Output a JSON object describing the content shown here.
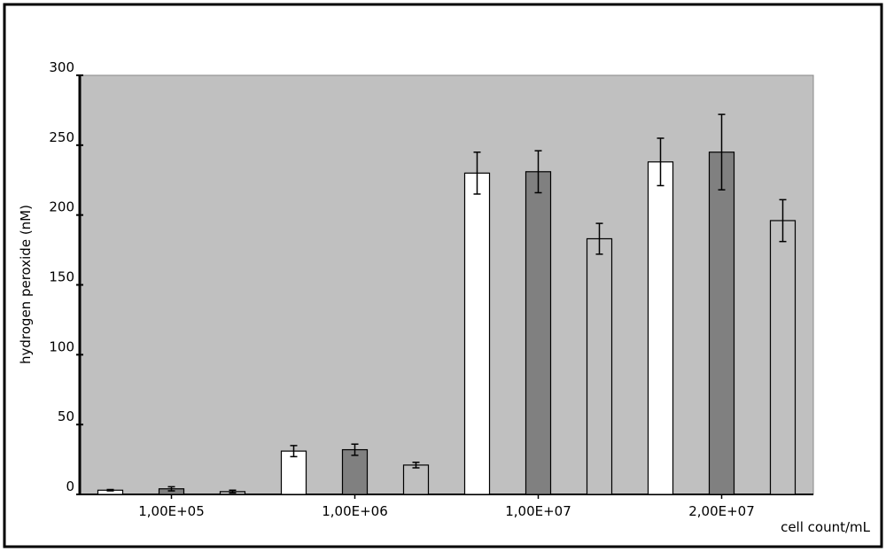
{
  "chart_data": {
    "type": "bar",
    "categories": [
      "1,00E+05",
      "1,00E+06",
      "1,00E+07",
      "2,00E+07"
    ],
    "series": [
      {
        "color": "#ffffff",
        "values": [
          3,
          31,
          230,
          238
        ],
        "errors": [
          0.5,
          4,
          15,
          17
        ]
      },
      {
        "color": "#808080",
        "values": [
          4,
          32,
          231,
          245
        ],
        "errors": [
          1.5,
          4,
          15,
          27
        ]
      },
      {
        "color": "#c0c0c0",
        "values": [
          2,
          21,
          183,
          196
        ],
        "errors": [
          1,
          2,
          11,
          15
        ]
      }
    ],
    "ylim": [
      0,
      300
    ],
    "yticks": [
      0,
      50,
      100,
      150,
      200,
      250,
      300
    ],
    "xlabel": "cell count/mL",
    "ylabel": "hydrogen peroxide (nM)",
    "plot_background": "#c0c0c0"
  }
}
